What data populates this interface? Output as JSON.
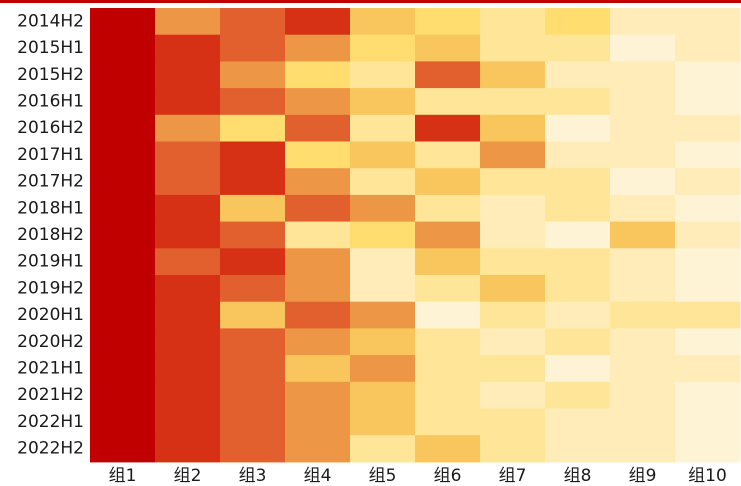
{
  "chart_data": {
    "type": "heatmap",
    "rows": [
      "2014H2",
      "2015H1",
      "2015H2",
      "2016H1",
      "2016H2",
      "2017H1",
      "2017H2",
      "2018H1",
      "2018H2",
      "2019H1",
      "2019H2",
      "2020H1",
      "2020H2",
      "2021H1",
      "2021H2",
      "2022H1",
      "2022H2"
    ],
    "columns": [
      "组1",
      "组2",
      "组3",
      "组4",
      "组5",
      "组6",
      "组7",
      "组8",
      "组9",
      "组10"
    ],
    "values": [
      [
        10,
        6,
        7,
        8,
        4,
        3,
        2,
        3,
        1,
        1
      ],
      [
        10,
        8,
        7,
        6,
        3,
        4,
        2,
        2,
        0,
        1
      ],
      [
        10,
        8,
        6,
        3,
        2,
        7,
        4,
        1,
        1,
        0
      ],
      [
        10,
        8,
        7,
        6,
        4,
        2,
        2,
        2,
        1,
        0
      ],
      [
        10,
        6,
        3,
        7,
        2,
        8,
        4,
        0,
        1,
        1
      ],
      [
        10,
        7,
        8,
        3,
        4,
        2,
        6,
        1,
        1,
        0
      ],
      [
        10,
        7,
        8,
        6,
        2,
        4,
        2,
        2,
        0,
        1
      ],
      [
        10,
        8,
        4,
        7,
        6,
        2,
        1,
        2,
        1,
        0
      ],
      [
        10,
        8,
        7,
        2,
        3,
        6,
        1,
        0,
        4,
        1
      ],
      [
        10,
        7,
        8,
        6,
        1,
        4,
        2,
        2,
        1,
        0
      ],
      [
        10,
        8,
        7,
        6,
        1,
        2,
        4,
        2,
        1,
        0
      ],
      [
        10,
        8,
        4,
        7,
        6,
        0,
        2,
        1,
        2,
        2
      ],
      [
        10,
        8,
        7,
        6,
        4,
        2,
        1,
        2,
        1,
        0
      ],
      [
        10,
        8,
        7,
        4,
        6,
        2,
        2,
        0,
        1,
        1
      ],
      [
        10,
        8,
        7,
        6,
        4,
        2,
        1,
        2,
        1,
        0
      ],
      [
        10,
        8,
        7,
        6,
        4,
        2,
        2,
        1,
        1,
        0
      ],
      [
        10,
        8,
        7,
        6,
        2,
        4,
        2,
        1,
        1,
        0
      ]
    ],
    "color_scale": [
      "#fff3d6",
      "#ffecb8",
      "#ffe597",
      "#ffdd6e",
      "#f8c65c",
      "#f3aa52",
      "#ec9646",
      "#e1602e",
      "#d63015",
      "#c50a0a",
      "#c00000"
    ],
    "legend": "none"
  }
}
